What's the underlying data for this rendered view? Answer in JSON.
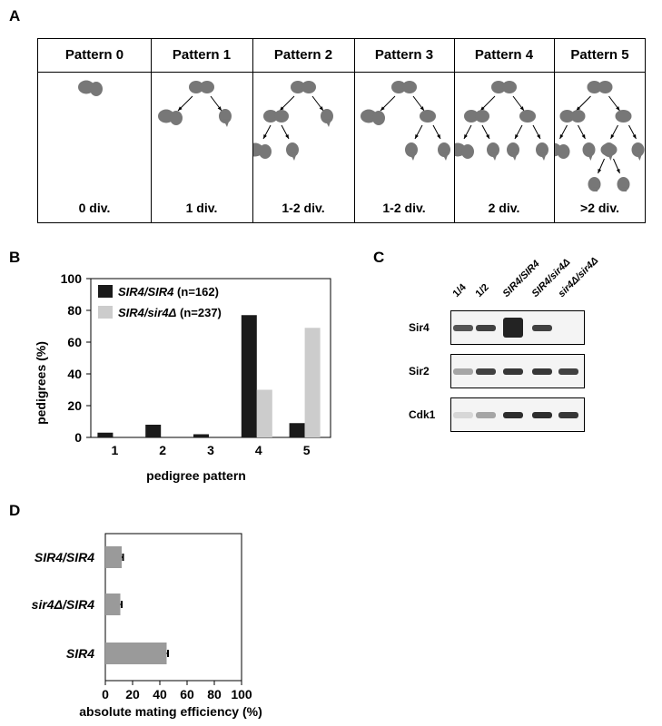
{
  "panels": {
    "a": {
      "letter": "A"
    },
    "b": {
      "letter": "B"
    },
    "c": {
      "letter": "C"
    },
    "d": {
      "letter": "D"
    }
  },
  "patterns": [
    {
      "title": "Pattern 0",
      "divisions": "0 div."
    },
    {
      "title": "Pattern 1",
      "divisions": "1 div."
    },
    {
      "title": "Pattern 2",
      "divisions": "1-2 div."
    },
    {
      "title": "Pattern 3",
      "divisions": "1-2 div."
    },
    {
      "title": "Pattern 4",
      "divisions": "2 div."
    },
    {
      "title": "Pattern 5",
      "divisions": ">2 div."
    }
  ],
  "chart_data": [
    {
      "type": "bar",
      "panel": "B",
      "categories": [
        "1",
        "2",
        "3",
        "4",
        "5"
      ],
      "series": [
        {
          "name": "SIR4/SIR4",
          "annotation": "(n=162)",
          "color": "#1a1a1a",
          "values": [
            3,
            8,
            2,
            77,
            9
          ]
        },
        {
          "name": "SIR4/sir4Δ",
          "annotation": "(n=237)",
          "color": "#cccccc",
          "values": [
            0,
            0,
            0,
            30,
            69
          ]
        }
      ],
      "xlabel": "pedigree pattern",
      "ylabel": "pedigrees (%)",
      "ylim": [
        0,
        100
      ],
      "yticks": [
        "0",
        "20",
        "40",
        "60",
        "80",
        "100"
      ],
      "legend": "top-left"
    },
    {
      "type": "bar",
      "orientation": "horizontal",
      "panel": "D",
      "categories": [
        "SIR4/SIR4",
        "sir4Δ/SIR4",
        "SIR4"
      ],
      "values": [
        12,
        11,
        45
      ],
      "errors": [
        1,
        1,
        1
      ],
      "color": "#9a9a9a",
      "xlabel": "absolute mating efficiency (%)",
      "xlim": [
        0,
        100
      ],
      "xticks": [
        "0",
        "20",
        "40",
        "60",
        "80",
        "100"
      ]
    }
  ],
  "western_blot": {
    "lanes": [
      "1/4",
      "1/2",
      "SIR4/SIR4",
      "SIR4/sir4Δ",
      "sir4Δ/sir4Δ"
    ],
    "rows": [
      {
        "label": "Sir4",
        "intensities": [
          0.75,
          0.85,
          1.0,
          0.85,
          0.0
        ]
      },
      {
        "label": "Sir2",
        "intensities": [
          0.35,
          0.85,
          0.9,
          0.9,
          0.85
        ]
      },
      {
        "label": "Cdk1",
        "intensities": [
          0.1,
          0.35,
          0.95,
          0.95,
          0.9
        ]
      }
    ]
  }
}
